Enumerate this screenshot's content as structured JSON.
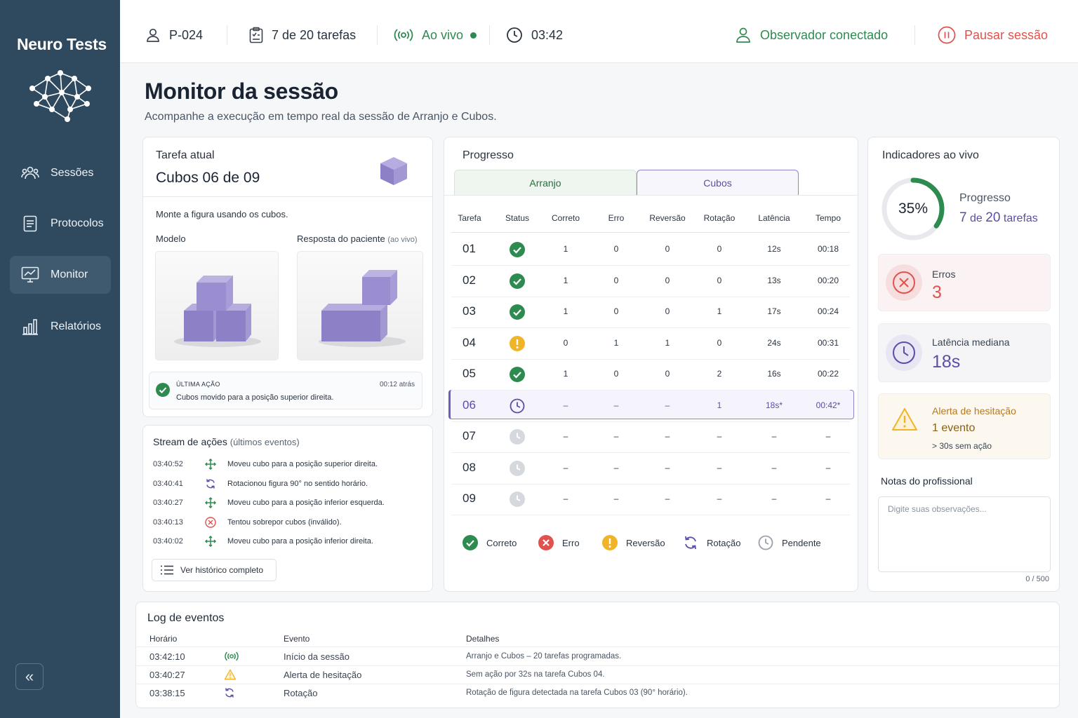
{
  "app": {
    "name": "Neuro Tests"
  },
  "sidebar": {
    "items": [
      {
        "label": "Sessões",
        "icon": "users-icon"
      },
      {
        "label": "Protocolos",
        "icon": "document-icon"
      },
      {
        "label": "Monitor",
        "icon": "monitor-chart-icon",
        "active": true
      },
      {
        "label": "Relatórios",
        "icon": "bar-chart-icon"
      }
    ],
    "collapse_label": "«"
  },
  "topbar": {
    "participant": "P-024",
    "tasks": "7 de 20 tarefas",
    "live": "Ao vivo",
    "timer": "03:42",
    "observer": "Observador conectado",
    "pause": "Pausar sessão"
  },
  "page": {
    "title": "Monitor da sessão",
    "subtitle": "Acompanhe a execução em tempo real da sessão de Arranjo e Cubos."
  },
  "current_task": {
    "label": "Tarefa atual",
    "value": "Cubos 06 de 09",
    "instruction": "Monte a figura usando os cubos.",
    "model_label": "Modelo",
    "response_label": "Resposta do paciente",
    "response_sub": "(ao vivo)",
    "last_action_title": "ÚLTIMA AÇÃO",
    "last_action_text": "Cubos movido para a posição superior direita.",
    "last_action_time": "00:12 atrás"
  },
  "stream": {
    "title": "Stream de ações",
    "subtitle": "(últimos eventos)",
    "events": [
      {
        "time": "03:40:52",
        "type": "move",
        "text": "Moveu cubo para a posição superior direita."
      },
      {
        "time": "03:40:41",
        "type": "rotate",
        "text": "Rotacionou figura 90° no sentido horário."
      },
      {
        "time": "03:40:27",
        "type": "move",
        "text": "Moveu cubo para a posição inferior esquerda."
      },
      {
        "time": "03:40:13",
        "type": "error",
        "text": "Tentou sobrepor cubos (inválido)."
      },
      {
        "time": "03:40:02",
        "type": "move",
        "text": "Moveu cubo para a posição inferior direita."
      }
    ],
    "history_button": "Ver histórico completo"
  },
  "progress": {
    "title": "Progresso",
    "tabs": [
      "Arranjo",
      "Cubos"
    ],
    "active_tab": 1,
    "columns": [
      "Tarefa",
      "Status",
      "Correto",
      "Erro",
      "Reversão",
      "Rotação",
      "Latência",
      "Tempo"
    ],
    "rows": [
      {
        "task": "01",
        "status": "correct",
        "correto": "1",
        "erro": "0",
        "reversao": "0",
        "rotacao": "0",
        "latencia": "12s",
        "tempo": "00:18"
      },
      {
        "task": "02",
        "status": "correct",
        "correto": "1",
        "erro": "0",
        "reversao": "0",
        "rotacao": "0",
        "latencia": "13s",
        "tempo": "00:20"
      },
      {
        "task": "03",
        "status": "correct",
        "correto": "1",
        "erro": "0",
        "reversao": "0",
        "rotacao": "1",
        "latencia": "17s",
        "tempo": "00:24"
      },
      {
        "task": "04",
        "status": "reversal",
        "correto": "0",
        "erro": "1",
        "reversao": "1",
        "rotacao": "0",
        "latencia": "24s",
        "tempo": "00:31"
      },
      {
        "task": "05",
        "status": "correct",
        "correto": "1",
        "erro": "0",
        "reversao": "0",
        "rotacao": "2",
        "latencia": "16s",
        "tempo": "00:22"
      },
      {
        "task": "06",
        "status": "current",
        "correto": "–",
        "erro": "–",
        "reversao": "–",
        "rotacao": "1",
        "latencia": "18s*",
        "tempo": "00:42*"
      },
      {
        "task": "07",
        "status": "pending",
        "correto": "–",
        "erro": "–",
        "reversao": "–",
        "rotacao": "–",
        "latencia": "–",
        "tempo": "–"
      },
      {
        "task": "08",
        "status": "pending",
        "correto": "–",
        "erro": "–",
        "reversao": "–",
        "rotacao": "–",
        "latencia": "–",
        "tempo": "–"
      },
      {
        "task": "09",
        "status": "pending",
        "correto": "–",
        "erro": "–",
        "reversao": "–",
        "rotacao": "–",
        "latencia": "–",
        "tempo": "–"
      }
    ],
    "legend": [
      "Correto",
      "Erro",
      "Reversão",
      "Rotação",
      "Pendente"
    ]
  },
  "indicators": {
    "title": "Indicadores ao vivo",
    "progress_pct": "35%",
    "progress_fraction": 0.35,
    "progress_label": "Progresso",
    "progress_done": "7",
    "progress_of": "de",
    "progress_total": "20",
    "progress_unit": "tarefas",
    "errors_label": "Erros",
    "errors_value": "3",
    "latency_label": "Latência mediana",
    "latency_value": "18s",
    "alert_title": "Alerta de hesitação",
    "alert_count": "1 evento",
    "alert_detail": "> 30s sem ação",
    "notes_label": "Notas do profissional",
    "notes_placeholder": "Digite suas observações...",
    "notes_count": "0 / 500"
  },
  "log": {
    "title": "Log de eventos",
    "columns": [
      "Horário",
      "Evento",
      "Detalhes"
    ],
    "rows": [
      {
        "time": "03:42:10",
        "icon": "live",
        "event": "Início da sessão",
        "details": "Arranjo e Cubos – 20 tarefas programadas."
      },
      {
        "time": "03:40:27",
        "icon": "warning",
        "event": "Alerta de hesitação",
        "details": "Sem ação por 32s na tarefa Cubos 04."
      },
      {
        "time": "03:38:15",
        "icon": "rotate",
        "event": "Rotação",
        "details": "Rotação de figura detectada na tarefa Cubos 03 (90° horário)."
      }
    ]
  },
  "colors": {
    "sidebar": "#2f4a5f",
    "green": "#2e8b4f",
    "red": "#e0524d",
    "purple": "#5a4ea6",
    "amber": "#f0b429",
    "cube": "#9b8fcf"
  }
}
